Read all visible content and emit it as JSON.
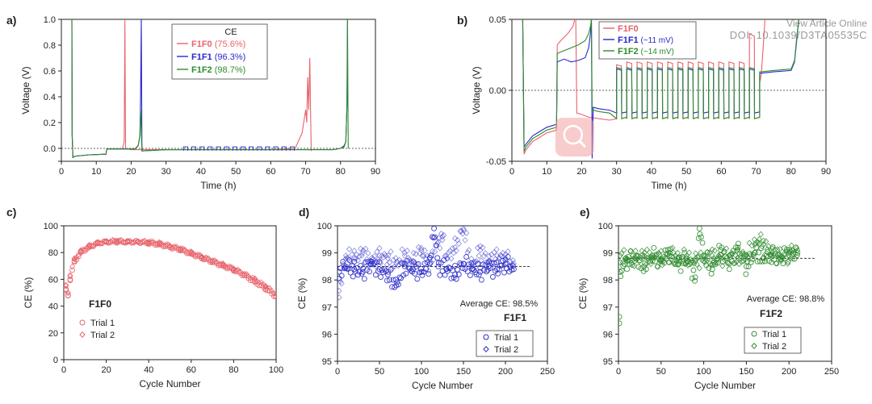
{
  "watermark": {
    "line1": "View Article Online",
    "line2": "DOI: 10.1039/D3TA05535C"
  },
  "colors": {
    "F1F0": "#e8636b",
    "F1F1": "#2929c8",
    "F1F2": "#2e8b2e",
    "axis": "#222222",
    "zoom_icon": "#f3a3a3"
  },
  "chart_data": [
    {
      "id": "a",
      "panel_label": "a)",
      "type": "line",
      "xlabel": "Time (h)",
      "ylabel": "Voltage (V)",
      "xlim": [
        0,
        90
      ],
      "ylim": [
        -0.1,
        1.0
      ],
      "xticks": [
        0,
        10,
        20,
        30,
        40,
        50,
        60,
        70,
        80,
        90
      ],
      "yticks": [
        -0.1,
        0.0,
        0.2,
        0.4,
        0.6,
        0.8,
        1.0
      ],
      "ytick_labels": [
        "",
        "0.0",
        "0.2",
        "0.4",
        "0.6",
        "0.8",
        "1.0"
      ],
      "reference_line_y": 0.0,
      "legend_title": "CE",
      "legend": [
        {
          "name": "F1F0",
          "value": "(75.6%)"
        },
        {
          "name": "F1F1",
          "value": "(96.3%)"
        },
        {
          "name": "F1F2",
          "value": "(98.7%)"
        }
      ],
      "series": [
        {
          "name": "F1F0",
          "x": [
            3.0,
            3.1,
            3.3,
            4,
            8,
            12.8,
            13,
            17.5,
            18,
            18.2,
            18.4,
            20,
            30,
            40,
            50,
            60,
            67,
            69,
            70,
            70.3,
            70.6,
            70.9,
            71.2,
            71.4,
            71.6
          ],
          "y": [
            1.0,
            0.1,
            -0.07,
            -0.06,
            -0.05,
            -0.045,
            -0.005,
            -0.005,
            0.05,
            1.0,
            0.0,
            -0.01,
            -0.01,
            -0.01,
            -0.01,
            -0.01,
            0.0,
            0.12,
            0.3,
            0.2,
            0.55,
            0.3,
            0.7,
            0.3,
            -0.02
          ]
        },
        {
          "name": "F1F1",
          "x": [
            3.0,
            3.1,
            3.3,
            4,
            8,
            12.8,
            13,
            21,
            22,
            22.5,
            22.7,
            22.9,
            23.1,
            30,
            40,
            50,
            60,
            70,
            78,
            80,
            81,
            81.5,
            81.8,
            82.0
          ],
          "y": [
            1.0,
            0.1,
            -0.07,
            -0.06,
            -0.05,
            -0.045,
            -0.005,
            -0.005,
            0.02,
            0.1,
            0.4,
            1.0,
            -0.02,
            -0.01,
            -0.01,
            -0.01,
            -0.01,
            -0.01,
            -0.01,
            0.0,
            0.02,
            0.05,
            0.3,
            1.0
          ]
        },
        {
          "name": "F1F2",
          "x": [
            3.0,
            3.1,
            3.3,
            4,
            8,
            12.8,
            13,
            21,
            22,
            22.5,
            22.7,
            23.1,
            30,
            40,
            50,
            60,
            70,
            78,
            80,
            81,
            81.5,
            81.9,
            82.0,
            82.2
          ],
          "y": [
            1.0,
            0.1,
            -0.07,
            -0.06,
            -0.05,
            -0.045,
            -0.005,
            -0.005,
            0.02,
            0.1,
            0.3,
            -0.02,
            -0.01,
            -0.01,
            -0.01,
            -0.01,
            -0.01,
            -0.01,
            0.0,
            0.01,
            0.05,
            0.4,
            1.0,
            0.0
          ]
        }
      ]
    },
    {
      "id": "b",
      "panel_label": "b)",
      "type": "line",
      "xlabel": "Time (h)",
      "ylabel": "Voltage (V)",
      "xlim": [
        0,
        90
      ],
      "ylim": [
        -0.05,
        0.05
      ],
      "xticks": [
        0,
        10,
        20,
        30,
        40,
        50,
        60,
        70,
        80,
        90
      ],
      "yticks": [
        -0.05,
        0.0,
        0.05
      ],
      "ytick_labels": [
        "-0.05",
        "0.00",
        "0.05"
      ],
      "reference_line_y": 0.0,
      "legend": [
        {
          "name": "F1F0",
          "value": ""
        },
        {
          "name": "F1F1",
          "value": "(~11 mV)"
        },
        {
          "name": "F1F2",
          "value": "(~14 mV)"
        }
      ],
      "series": [
        {
          "name": "F1F0",
          "x": [
            3.1,
            3.5,
            4,
            6,
            8,
            10,
            12.8,
            13,
            14,
            16,
            17.5,
            18,
            18.3,
            18.6,
            20,
            22,
            25,
            28,
            30,
            71,
            71.5,
            72,
            72.5
          ],
          "y": [
            0.05,
            -0.045,
            -0.042,
            -0.036,
            -0.033,
            -0.03,
            -0.028,
            0.032,
            0.035,
            0.04,
            0.045,
            0.05,
            0.05,
            -0.016,
            -0.017,
            -0.019,
            -0.02,
            -0.021,
            -0.022,
            0.005,
            0.012,
            0.03,
            0.05
          ]
        },
        {
          "name": "F1F1",
          "x": [
            3.1,
            3.5,
            4,
            6,
            8,
            10,
            12.8,
            13,
            15,
            17,
            19,
            21,
            22,
            22.5,
            22.8,
            23.0,
            23.3,
            25,
            28,
            30,
            71,
            75,
            80,
            81,
            81.6,
            82.2
          ],
          "y": [
            0.05,
            -0.04,
            -0.038,
            -0.032,
            -0.029,
            -0.026,
            -0.024,
            0.02,
            0.022,
            0.02,
            0.021,
            0.023,
            0.03,
            0.04,
            0.05,
            -0.048,
            -0.012,
            -0.013,
            -0.014,
            -0.015,
            0.012,
            0.013,
            0.014,
            0.02,
            0.035,
            0.05
          ]
        },
        {
          "name": "F1F2",
          "x": [
            3.1,
            3.5,
            4,
            6,
            8,
            10,
            12.8,
            13,
            15,
            17,
            19,
            21,
            22,
            22.5,
            22.8,
            23.0,
            23.3,
            25,
            28,
            30,
            71,
            75,
            80,
            81,
            81.6,
            82.2
          ],
          "y": [
            0.05,
            -0.043,
            -0.04,
            -0.034,
            -0.031,
            -0.028,
            -0.026,
            0.026,
            0.028,
            0.03,
            0.032,
            0.035,
            0.04,
            0.045,
            0.05,
            -0.014,
            -0.014,
            -0.015,
            -0.016,
            -0.016,
            0.013,
            0.014,
            0.015,
            0.021,
            0.037,
            0.05
          ]
        }
      ],
      "pulses": {
        "x_start": 30,
        "x_end": 71,
        "count": 14,
        "F1F0": {
          "high": 0.02,
          "low": -0.02,
          "high_first": 0.018,
          "high_last": 0.04
        },
        "F1F1": {
          "high": 0.015,
          "low": -0.016
        },
        "F1F2": {
          "high": 0.016,
          "low": -0.02
        }
      }
    },
    {
      "id": "c",
      "panel_label": "c)",
      "type": "scatter",
      "xlabel": "Cycle Number",
      "ylabel": "CE (%)",
      "xlim": [
        0,
        100
      ],
      "ylim": [
        0,
        100
      ],
      "xticks": [
        0,
        20,
        40,
        60,
        80,
        100
      ],
      "yticks": [
        0,
        20,
        40,
        60,
        80,
        100
      ],
      "color_key": "F1F0",
      "label": "F1F0",
      "legend": [
        "Trial 1",
        "Trial 2"
      ],
      "series": [
        {
          "name": "Trial 1",
          "marker": "circle",
          "x": [
            1,
            2,
            3,
            5,
            8,
            12,
            16,
            20,
            25,
            30,
            35,
            40,
            45,
            50,
            55,
            60,
            65,
            70,
            75,
            80,
            85,
            90,
            95,
            100
          ],
          "y": [
            52,
            48,
            60,
            73,
            80,
            84,
            87,
            88,
            88,
            88,
            88,
            87,
            86,
            84,
            82,
            79,
            76,
            73,
            70,
            67,
            63,
            58,
            53,
            47
          ]
        },
        {
          "name": "Trial 2",
          "marker": "diamond",
          "x": [
            1,
            2,
            3,
            5,
            8,
            12,
            16,
            20,
            25,
            30,
            35,
            40,
            45,
            50,
            55,
            60,
            65,
            70,
            75,
            80,
            85,
            90,
            95,
            100
          ],
          "y": [
            55,
            50,
            63,
            75,
            81,
            85,
            87,
            88,
            89,
            88,
            88,
            88,
            87,
            85,
            83,
            80,
            77,
            74,
            71,
            68,
            64,
            60,
            55,
            49
          ]
        }
      ]
    },
    {
      "id": "d",
      "panel_label": "d)",
      "type": "scatter",
      "xlabel": "Cycle Number",
      "ylabel": "CE (%)",
      "xlim": [
        0,
        250
      ],
      "ylim": [
        95,
        100
      ],
      "xticks": [
        0,
        50,
        100,
        150,
        200,
        250
      ],
      "yticks": [
        95,
        96,
        97,
        98,
        99,
        100
      ],
      "color_key": "F1F1",
      "label": "F1F1",
      "annotation": "Average CE: 98.5%",
      "average": 98.5,
      "legend": [
        "Trial 1",
        "Trial 2"
      ],
      "series": [
        {
          "name": "Trial 1",
          "marker": "circle",
          "x": [
            2,
            10,
            20,
            30,
            40,
            50,
            60,
            70,
            80,
            90,
            100,
            110,
            115,
            120,
            130,
            140,
            150,
            160,
            170,
            180,
            190,
            200,
            210
          ],
          "y": [
            98.3,
            98.5,
            98.4,
            98.3,
            98.6,
            98.4,
            98.2,
            97.8,
            98.5,
            98.4,
            98.3,
            98.6,
            99.9,
            98.5,
            98.4,
            98.2,
            98.6,
            98.4,
            98.3,
            98.5,
            98.4,
            98.6,
            98.4
          ]
        },
        {
          "name": "Trial 2",
          "marker": "diamond",
          "x": [
            2,
            10,
            20,
            30,
            40,
            50,
            60,
            70,
            80,
            90,
            100,
            110,
            120,
            125,
            130,
            140,
            150,
            160,
            170,
            180,
            190,
            200,
            210
          ],
          "y": [
            97.6,
            98.9,
            98.8,
            99.0,
            98.7,
            98.9,
            98.8,
            98.6,
            98.9,
            98.7,
            99.1,
            98.6,
            99.4,
            99.6,
            98.8,
            99.2,
            99.9,
            98.5,
            99.1,
            98.7,
            98.9,
            98.8,
            98.6
          ]
        }
      ]
    },
    {
      "id": "e",
      "panel_label": "e)",
      "type": "scatter",
      "xlabel": "Cycle Number",
      "ylabel": "CE (%)",
      "xlim": [
        0,
        250
      ],
      "ylim": [
        95,
        100
      ],
      "xticks": [
        0,
        50,
        100,
        150,
        200,
        250
      ],
      "yticks": [
        95,
        96,
        97,
        98,
        99,
        100
      ],
      "color_key": "F1F2",
      "label": "F1F2",
      "annotation": "Average CE: 98.8%",
      "average": 98.8,
      "legend": [
        "Trial 1",
        "Trial 2"
      ],
      "series": [
        {
          "name": "Trial 1",
          "marker": "circle",
          "x": [
            1,
            2,
            10,
            20,
            30,
            40,
            50,
            60,
            70,
            80,
            90,
            95,
            100,
            110,
            120,
            130,
            140,
            150,
            160,
            170,
            180,
            190,
            200,
            210
          ],
          "y": [
            96.4,
            98.3,
            98.7,
            98.8,
            98.5,
            98.9,
            98.7,
            99.0,
            98.6,
            98.8,
            98.1,
            99.9,
            98.9,
            98.4,
            99.1,
            98.6,
            99.2,
            98.5,
            99.0,
            98.8,
            98.9,
            98.8,
            99.0,
            99.0
          ]
        },
        {
          "name": "Trial 2",
          "marker": "diamond",
          "x": [
            2,
            10,
            20,
            30,
            40,
            50,
            60,
            70,
            80,
            90,
            100,
            110,
            120,
            130,
            140,
            150,
            160,
            165,
            170,
            180,
            190,
            200,
            210
          ],
          "y": [
            98.9,
            98.8,
            98.8,
            98.9,
            98.8,
            98.8,
            98.9,
            98.8,
            98.8,
            98.7,
            98.8,
            98.9,
            98.8,
            98.9,
            98.8,
            98.9,
            99.3,
            99.5,
            99.3,
            99.0,
            98.9,
            98.9,
            99.1
          ]
        }
      ]
    }
  ]
}
